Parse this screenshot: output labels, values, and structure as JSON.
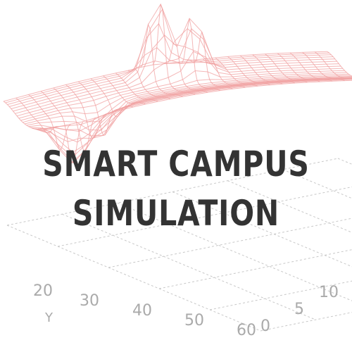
{
  "title_lines": [
    "SMART CAMPUS",
    "SIMULATION"
  ],
  "background": {
    "surface_color": "#f0a0a0",
    "axis_color": "#c8c8c8",
    "y_axis_name": "Y",
    "y_ticks": [
      "20",
      "30",
      "40",
      "50",
      "60"
    ],
    "x_ticks": [
      "0",
      "5",
      "10"
    ]
  }
}
